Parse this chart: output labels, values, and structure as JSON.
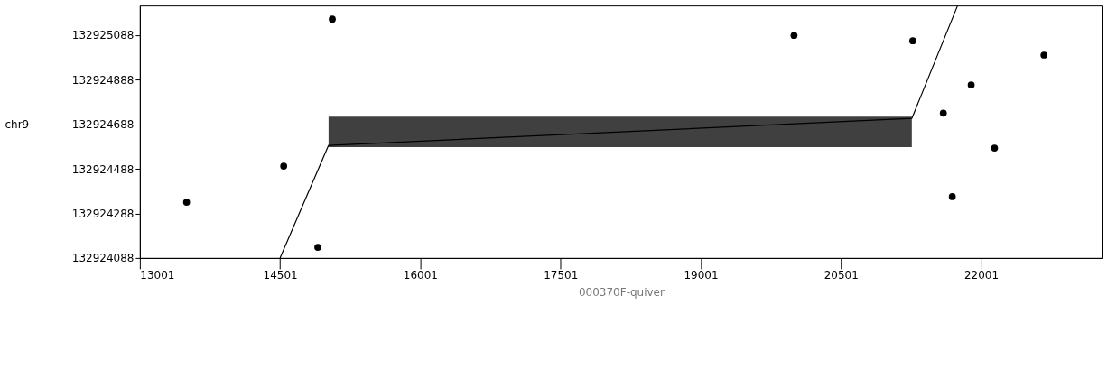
{
  "chart_data": {
    "type": "line",
    "xlabel": "000370F-quiver",
    "ylabel": "chr9",
    "xlim": [
      13001,
      23300
    ],
    "ylim": [
      132924088,
      132925220
    ],
    "xticks": [
      13001,
      14501,
      16001,
      17501,
      19001,
      20501,
      22001
    ],
    "yticks": [
      132924088,
      132924288,
      132924488,
      132924688,
      132924888,
      132925088
    ],
    "grid": false,
    "series": [
      {
        "color": "#000000",
        "x": [
          14501,
          15020,
          21260,
          21750
        ],
        "values": [
          132924088,
          132924593,
          132924714,
          132925220
        ],
        "lower": [
          null,
          132924585,
          132924585,
          null
        ],
        "upper": [
          null,
          132924722,
          132924722,
          null
        ]
      },
      {
        "type": "scatter",
        "color": "#000000",
        "marker": "circle",
        "x": [
          13501,
          14540,
          14905,
          15060,
          20000,
          21270,
          21597,
          21895,
          21693,
          22145,
          22674
        ],
        "values": [
          132924338,
          132924500,
          132924136,
          132925159,
          132925086,
          132925062,
          132924738,
          132924864,
          132924363,
          132924581,
          132924998
        ]
      }
    ]
  }
}
